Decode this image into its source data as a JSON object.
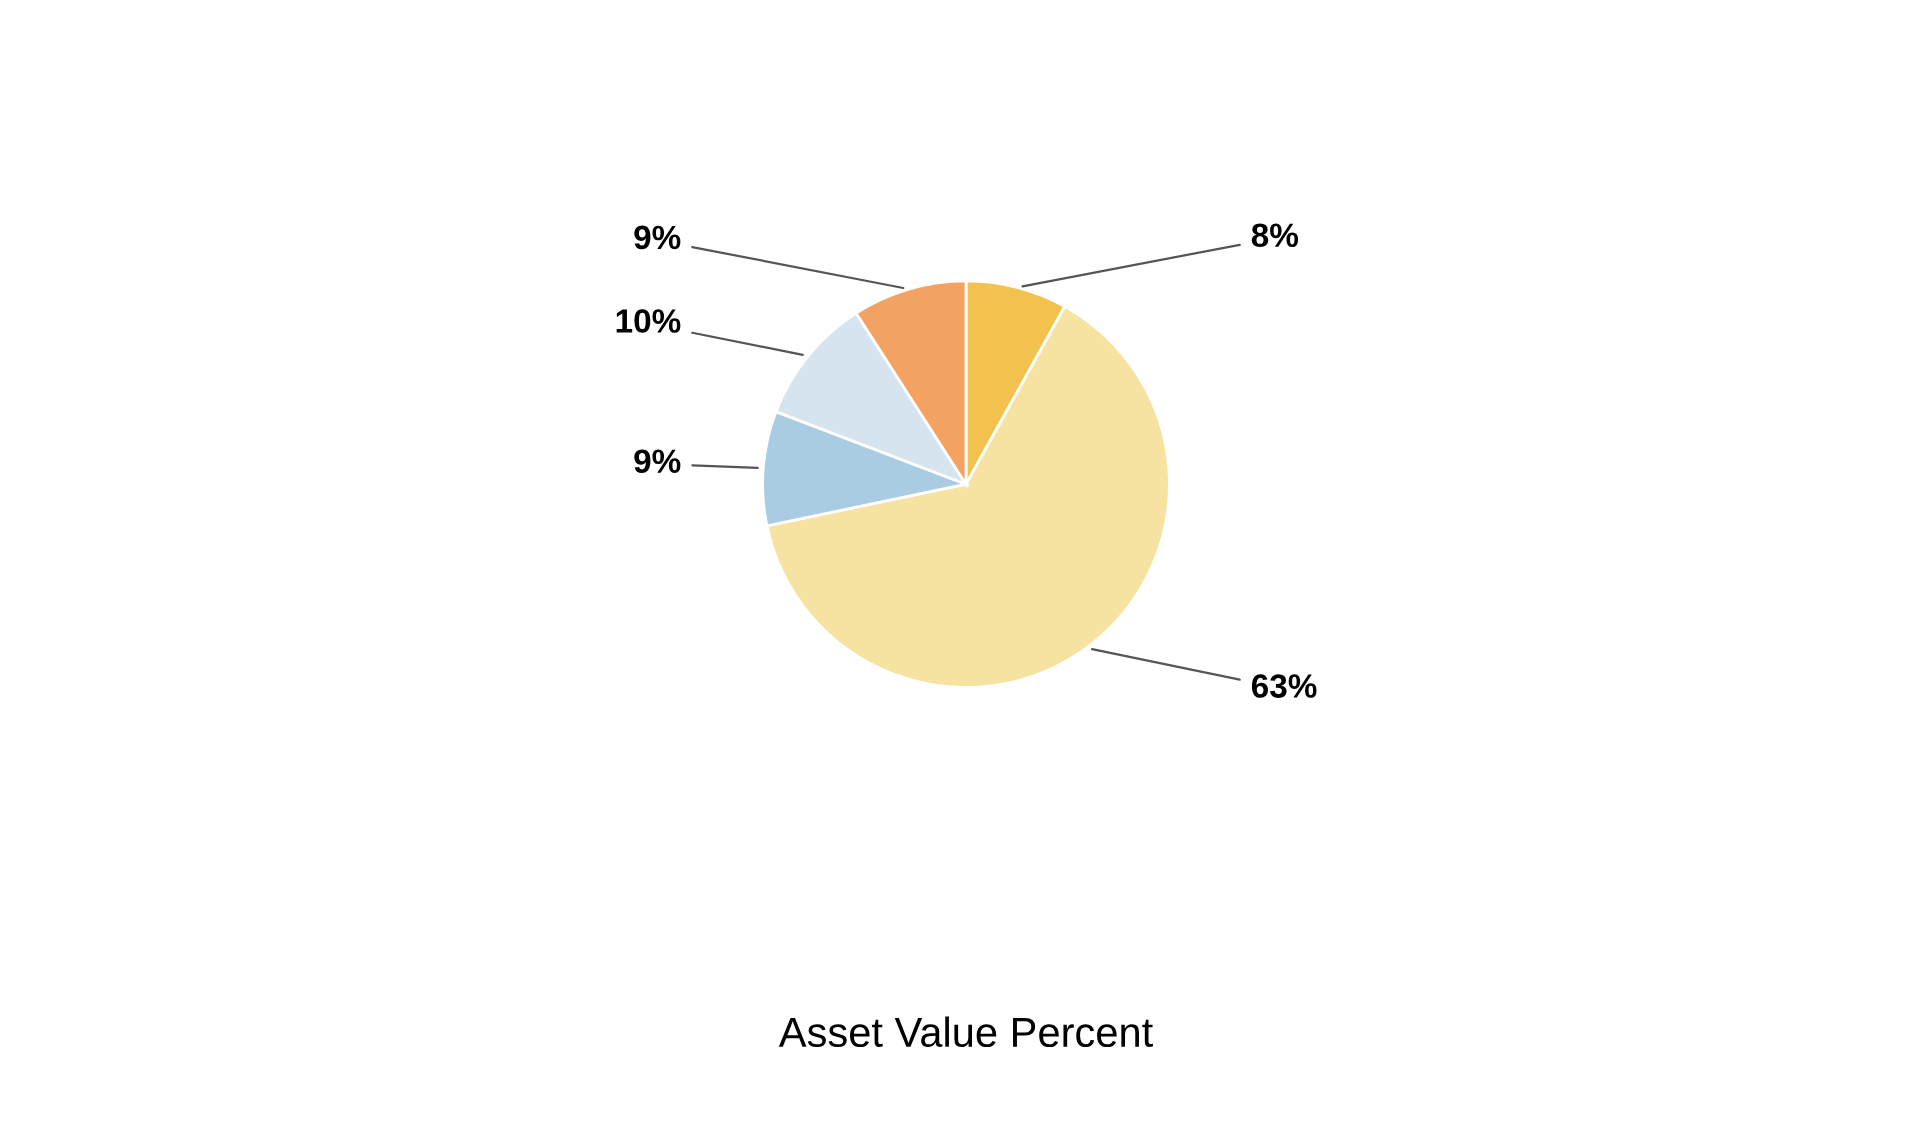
{
  "chart_data": {
    "type": "pie",
    "title": "Asset Value Percent",
    "categories": [
      null,
      null,
      null,
      null,
      null
    ],
    "values": [
      8,
      63,
      9,
      10,
      9
    ],
    "value_labels": [
      "8%",
      "63%",
      "9%",
      "10%",
      "9%"
    ],
    "colors": [
      "#f2c14e",
      "#f7e3a1",
      "#a9cce3",
      "#d6e4f0",
      "#f4a261"
    ],
    "legend": false
  }
}
